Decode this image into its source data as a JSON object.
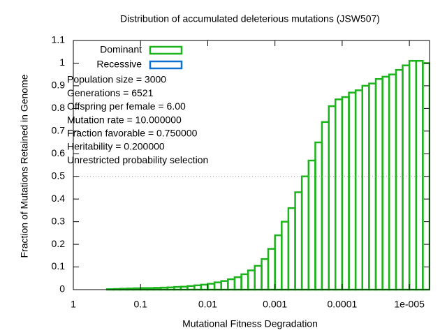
{
  "chart_data": {
    "type": "histogram",
    "title": "Distribution of accumulated deleterious mutations (JSW507)",
    "xlabel": "Mutational Fitness Degradation",
    "ylabel": "Fraction of Mutations Retained in Genome",
    "log_x": true,
    "xlim": [
      1,
      5.01e-06
    ],
    "xticks": [
      1,
      0.1,
      0.01,
      0.001,
      0.0001,
      {
        "value": 1e-05,
        "label": "1e-005"
      }
    ],
    "ylim": [
      0,
      1.1
    ],
    "yticks": [
      0,
      0.1,
      0.2,
      0.3,
      0.4,
      0.5,
      0.6,
      0.7,
      0.8,
      0.9,
      1,
      1.1
    ],
    "reference_line": 0.5,
    "legend": "top-left",
    "bins": [
      0.501,
      0.398,
      0.316,
      0.251,
      0.2,
      0.158,
      0.126,
      0.1,
      0.0794,
      0.0631,
      0.0501,
      0.0398,
      0.0316,
      0.0251,
      0.02,
      0.0158,
      0.0126,
      0.01,
      0.00794,
      0.00631,
      0.00501,
      0.00398,
      0.00316,
      0.00251,
      0.002,
      0.00158,
      0.00126,
      0.001,
      0.000794,
      0.000631,
      0.000501,
      0.000398,
      0.000316,
      0.000251,
      0.0002,
      0.000158,
      0.000126,
      0.0001,
      7.94e-05,
      6.31e-05,
      5.01e-05,
      3.98e-05,
      3.16e-05,
      2.51e-05,
      2e-05,
      1.58e-05,
      1.26e-05,
      1e-05,
      7.94e-06,
      6.31e-06,
      5.01e-06
    ],
    "series": [
      {
        "name": "Dominant",
        "color": "#1db31d",
        "values": [
          0,
          0,
          0.002,
          0.003,
          0.004,
          0.005,
          0.006,
          0.007,
          0.007,
          0.008,
          0.009,
          0.01,
          0.012,
          0.013,
          0.016,
          0.019,
          0.022,
          0.026,
          0.032,
          0.038,
          0.046,
          0.055,
          0.068,
          0.085,
          0.105,
          0.135,
          0.18,
          0.24,
          0.3,
          0.36,
          0.43,
          0.5,
          0.57,
          0.65,
          0.74,
          0.81,
          0.84,
          0.85,
          0.87,
          0.88,
          0.9,
          0.91,
          0.93,
          0.94,
          0.95,
          0.97,
          0.99,
          1.01,
          1.01,
          1
        ]
      },
      {
        "name": "Recessive",
        "color": "#1070d0",
        "values": [
          0,
          0,
          0,
          0,
          0,
          0,
          0,
          0,
          0,
          0,
          0,
          0,
          0,
          0,
          0,
          0,
          0,
          0,
          0,
          0,
          0,
          0,
          0,
          0,
          0,
          0,
          0,
          0,
          0,
          0,
          0,
          0,
          0,
          0,
          0,
          0,
          0,
          0,
          0,
          0,
          0,
          0,
          0,
          0,
          0,
          0,
          0,
          0,
          0,
          0
        ]
      }
    ],
    "annotations": [
      "Population size = 3000",
      "Generations = 6521",
      "Offspring per female = 6.00",
      "Mutation rate = 10.000000",
      "Fraction favorable = 0.750000",
      "Heritability = 0.200000",
      "Unrestricted probability selection"
    ]
  }
}
